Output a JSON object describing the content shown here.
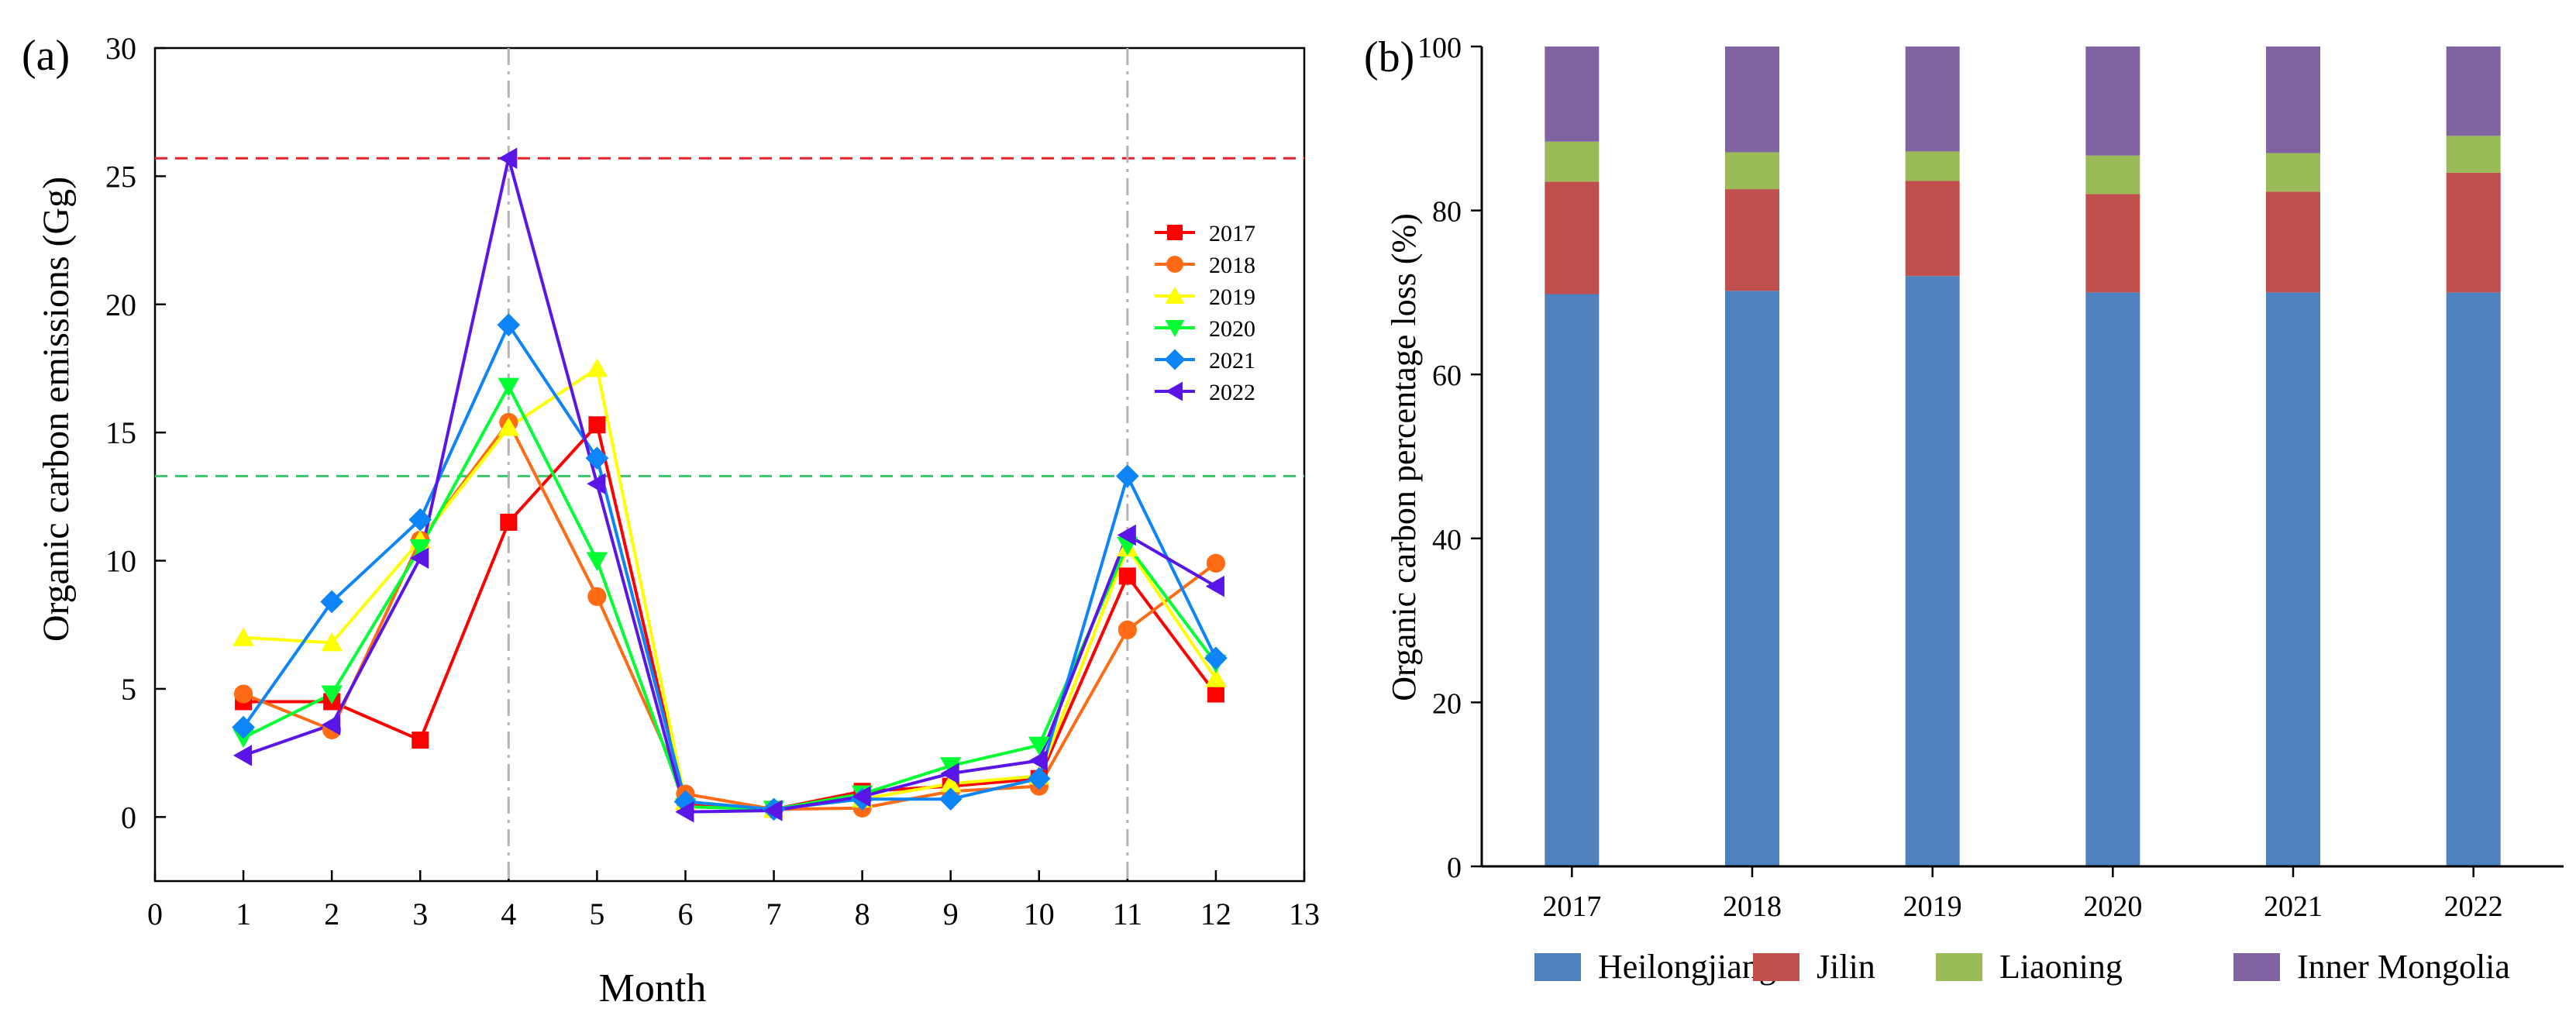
{
  "chart_data": [
    {
      "type": "line",
      "panel_label": "(a)",
      "xlabel": "Month",
      "ylabel": "Organic carbon emissions (Gg)",
      "xlim": [
        0,
        13
      ],
      "ylim": [
        -2.5,
        30
      ],
      "xticks": [
        "0",
        "1",
        "2",
        "3",
        "4",
        "5",
        "6",
        "7",
        "8",
        "9",
        "10",
        "11",
        "12",
        "13"
      ],
      "yticks": [
        "0",
        "5",
        "10",
        "15",
        "20",
        "25",
        "30"
      ],
      "x": [
        1,
        2,
        3,
        4,
        5,
        6,
        7,
        8,
        9,
        10,
        11,
        12
      ],
      "series": [
        {
          "name": "2017",
          "color": "#ff0000",
          "marker": "square",
          "values": [
            4.5,
            4.5,
            3.0,
            11.5,
            15.3,
            0.5,
            0.3,
            1.0,
            1.2,
            1.5,
            9.4,
            4.8
          ]
        },
        {
          "name": "2018",
          "color": "#ff6a14",
          "marker": "circle",
          "values": [
            4.8,
            3.4,
            10.8,
            15.4,
            8.6,
            0.9,
            0.3,
            0.35,
            1.0,
            1.2,
            7.3,
            9.9
          ]
        },
        {
          "name": "2019",
          "color": "#ffff00",
          "marker": "triangle-up",
          "values": [
            7.0,
            6.8,
            10.8,
            15.2,
            17.5,
            0.6,
            0.3,
            0.7,
            1.3,
            1.6,
            10.5,
            5.4
          ]
        },
        {
          "name": "2020",
          "color": "#00ff33",
          "marker": "triangle-down",
          "values": [
            3.1,
            4.8,
            10.5,
            16.8,
            10.0,
            0.4,
            0.3,
            0.9,
            2.0,
            2.8,
            10.6,
            6.0
          ]
        },
        {
          "name": "2021",
          "color": "#0d84f7",
          "marker": "diamond",
          "values": [
            3.5,
            8.4,
            11.6,
            19.2,
            14.0,
            0.6,
            0.3,
            0.7,
            0.7,
            1.5,
            13.3,
            6.2
          ]
        },
        {
          "name": "2022",
          "color": "#5a16e6",
          "marker": "triangle-left",
          "values": [
            2.4,
            3.6,
            10.1,
            25.7,
            13.0,
            0.2,
            0.25,
            0.8,
            1.7,
            2.2,
            11.0,
            9.0
          ]
        }
      ],
      "reference_lines": [
        {
          "orientation": "horizontal",
          "value": 25.7,
          "color": "#e8222b",
          "style": "dashed"
        },
        {
          "orientation": "horizontal",
          "value": 13.3,
          "color": "#3ec46d",
          "style": "dashed"
        },
        {
          "orientation": "vertical",
          "value": 4,
          "color": "#b3b3b3",
          "style": "dash-dot"
        },
        {
          "orientation": "vertical",
          "value": 11,
          "color": "#b3b3b3",
          "style": "dash-dot"
        }
      ],
      "legend_position": "right-upper",
      "grid": false
    },
    {
      "type": "bar",
      "stacked": true,
      "panel_label": "(b)",
      "xlabel": "",
      "ylabel": "Organic carbon percentage loss (%)",
      "ylim": [
        0,
        100
      ],
      "yticks": [
        "0",
        "20",
        "40",
        "60",
        "80",
        "100"
      ],
      "categories": [
        "2017",
        "2018",
        "2019",
        "2020",
        "2021",
        "2022"
      ],
      "series": [
        {
          "name": "Heilongjiang",
          "color": "#4e81bd",
          "values": [
            69.8,
            70.2,
            72.0,
            70.0,
            70.0,
            70.0
          ]
        },
        {
          "name": "Jilin",
          "color": "#c0504d",
          "values": [
            13.7,
            12.4,
            11.6,
            12.0,
            12.3,
            14.6
          ]
        },
        {
          "name": "Liaoning",
          "color": "#9bbb59",
          "values": [
            4.9,
            4.5,
            3.6,
            4.7,
            4.7,
            4.5
          ]
        },
        {
          "name": "Inner Mongolia",
          "color": "#8064a2",
          "values": [
            11.6,
            12.9,
            12.8,
            13.3,
            13.0,
            10.9
          ]
        }
      ],
      "legend_position": "bottom",
      "grid": false
    }
  ]
}
